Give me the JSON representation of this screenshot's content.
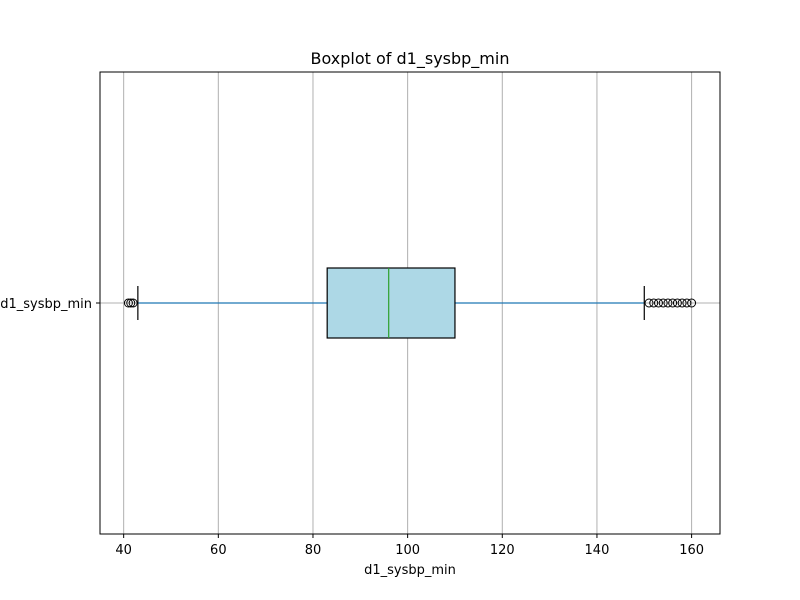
{
  "chart_data": {
    "type": "boxplot",
    "orientation": "horizontal",
    "title": "Boxplot of d1_sysbp_min",
    "xlabel": "d1_sysbp_min",
    "ylabel": "",
    "category_labels": [
      "d1_sysbp_min"
    ],
    "xlim": [
      35,
      166
    ],
    "x_ticks": [
      40,
      60,
      80,
      100,
      120,
      140,
      160
    ],
    "grid": {
      "x": true,
      "y": false
    },
    "boxes": [
      {
        "label": "d1_sysbp_min",
        "whisker_low": 43,
        "q1": 83,
        "median": 96,
        "q3": 110,
        "whisker_high": 150,
        "outliers": [
          41,
          41.5,
          42,
          151,
          152,
          153,
          154,
          155,
          156,
          157,
          158,
          159,
          160
        ]
      }
    ],
    "colors": {
      "box_fill": "#add8e6",
      "box_edge": "#000000",
      "median": "#2ca02c",
      "whisker": "#1f77b4",
      "cap": "#000000",
      "outlier_edge": "#000000",
      "grid": "#b0b0b0"
    }
  }
}
